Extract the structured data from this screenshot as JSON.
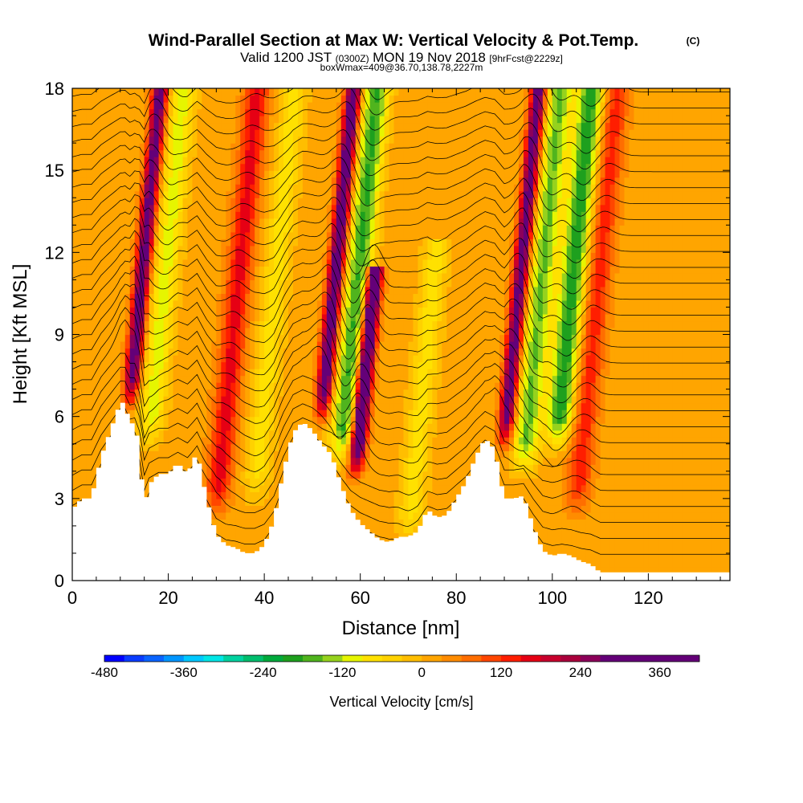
{
  "title": {
    "main": "Wind-Parallel Section at Max W: Vertical Velocity & Pot.Temp.",
    "mark": "(C)",
    "line2_a": "Valid 1200 JST",
    "line2_b": "(0300Z)",
    "line2_c": "MON 19 Nov 2018",
    "line2_d": "[9hrFcst@2229z]",
    "line3": "boxWmax=409@36.70,138.78,2227m"
  },
  "chart_data": {
    "type": "heatmap",
    "xlabel": "Distance [nm]",
    "ylabel": "Height [Kft MSL]",
    "xlim": [
      0,
      137
    ],
    "ylim": [
      0,
      18
    ],
    "xticks": [
      0,
      20,
      40,
      60,
      80,
      100,
      120
    ],
    "yticks": [
      0,
      3,
      6,
      9,
      12,
      15,
      18
    ],
    "colorbar": {
      "label": "Vertical Velocity [cm/s]",
      "min": -480,
      "max": 420,
      "step": 30,
      "ticks": [
        -480,
        -360,
        -240,
        -120,
        0,
        120,
        240,
        360
      ],
      "colors": [
        "#0000ff",
        "#0a3cff",
        "#0a64ff",
        "#0096ff",
        "#00c8ff",
        "#00e6e6",
        "#00d2a0",
        "#00be6e",
        "#00aa3c",
        "#1ea01e",
        "#50b41e",
        "#96d21e",
        "#e6f500",
        "#ffe100",
        "#ffd200",
        "#ffbe00",
        "#ffa500",
        "#ff8c00",
        "#ff6e00",
        "#ff4600",
        "#ff1e00",
        "#e60014",
        "#c8002d",
        "#aa003c",
        "#8c005a",
        "#640078"
      ]
    },
    "terrain_kft": [
      [
        0,
        2.6
      ],
      [
        2,
        3.0
      ],
      [
        4,
        3.0
      ],
      [
        6,
        4.5
      ],
      [
        8,
        5.5
      ],
      [
        10,
        6.5
      ],
      [
        11,
        6.5
      ],
      [
        12,
        5.7
      ],
      [
        13,
        5.8
      ],
      [
        14,
        4.8
      ],
      [
        15,
        2.6
      ],
      [
        16,
        3.5
      ],
      [
        18,
        3.9
      ],
      [
        20,
        3.9
      ],
      [
        22,
        4.3
      ],
      [
        24,
        3.9
      ],
      [
        26,
        4.7
      ],
      [
        28,
        3.0
      ],
      [
        30,
        1.7
      ],
      [
        32,
        1.3
      ],
      [
        34,
        1.2
      ],
      [
        36,
        1.0
      ],
      [
        38,
        1.0
      ],
      [
        40,
        1.3
      ],
      [
        42,
        2.2
      ],
      [
        44,
        4.0
      ],
      [
        46,
        5.4
      ],
      [
        48,
        5.8
      ],
      [
        50,
        5.5
      ],
      [
        52,
        5.0
      ],
      [
        54,
        4.6
      ],
      [
        56,
        3.5
      ],
      [
        58,
        2.6
      ],
      [
        60,
        2.1
      ],
      [
        62,
        1.8
      ],
      [
        64,
        1.5
      ],
      [
        66,
        1.4
      ],
      [
        68,
        1.6
      ],
      [
        70,
        1.6
      ],
      [
        72,
        1.8
      ],
      [
        74,
        2.6
      ],
      [
        76,
        2.3
      ],
      [
        78,
        2.4
      ],
      [
        80,
        3.0
      ],
      [
        82,
        3.6
      ],
      [
        84,
        4.5
      ],
      [
        86,
        5.2
      ],
      [
        88,
        4.8
      ],
      [
        90,
        3.0
      ],
      [
        92,
        3.0
      ],
      [
        94,
        3.1
      ],
      [
        96,
        2.0
      ],
      [
        98,
        1.1
      ],
      [
        100,
        0.9
      ],
      [
        102,
        1.0
      ],
      [
        104,
        0.9
      ],
      [
        106,
        0.7
      ],
      [
        108,
        0.6
      ],
      [
        110,
        0.3
      ],
      [
        137,
        0.3
      ]
    ],
    "updraft_cores": [
      {
        "x": 12,
        "w_max": 300,
        "base_kft": 6.5,
        "top_kft": 18
      },
      {
        "x": 30,
        "w_max": 150,
        "base_kft": 2.5,
        "top_kft": 18
      },
      {
        "x": 52,
        "w_max": 330,
        "base_kft": 6.0,
        "top_kft": 18
      },
      {
        "x": 59,
        "w_max": 409,
        "base_kft": 4.0,
        "top_kft": 11.0
      },
      {
        "x": 90,
        "w_max": 300,
        "base_kft": 5.0,
        "top_kft": 18
      },
      {
        "x": 105,
        "w_max": 120,
        "base_kft": 2.5,
        "top_kft": 18
      }
    ],
    "downdraft_cores": [
      {
        "x": 16,
        "w_min": -120,
        "base_kft": 5.0,
        "top_kft": 18
      },
      {
        "x": 38,
        "w_min": -90,
        "base_kft": 3.0,
        "top_kft": 18
      },
      {
        "x": 56,
        "w_min": -200,
        "base_kft": 4.5,
        "top_kft": 18
      },
      {
        "x": 70,
        "w_min": -90,
        "base_kft": 1.5,
        "top_kft": 12
      },
      {
        "x": 94,
        "w_min": -170,
        "base_kft": 4.0,
        "top_kft": 18
      },
      {
        "x": 101,
        "w_min": -220,
        "base_kft": 5.0,
        "top_kft": 18
      }
    ],
    "contour": {
      "variable": "Potential Temperature",
      "levels_count": 30
    }
  }
}
